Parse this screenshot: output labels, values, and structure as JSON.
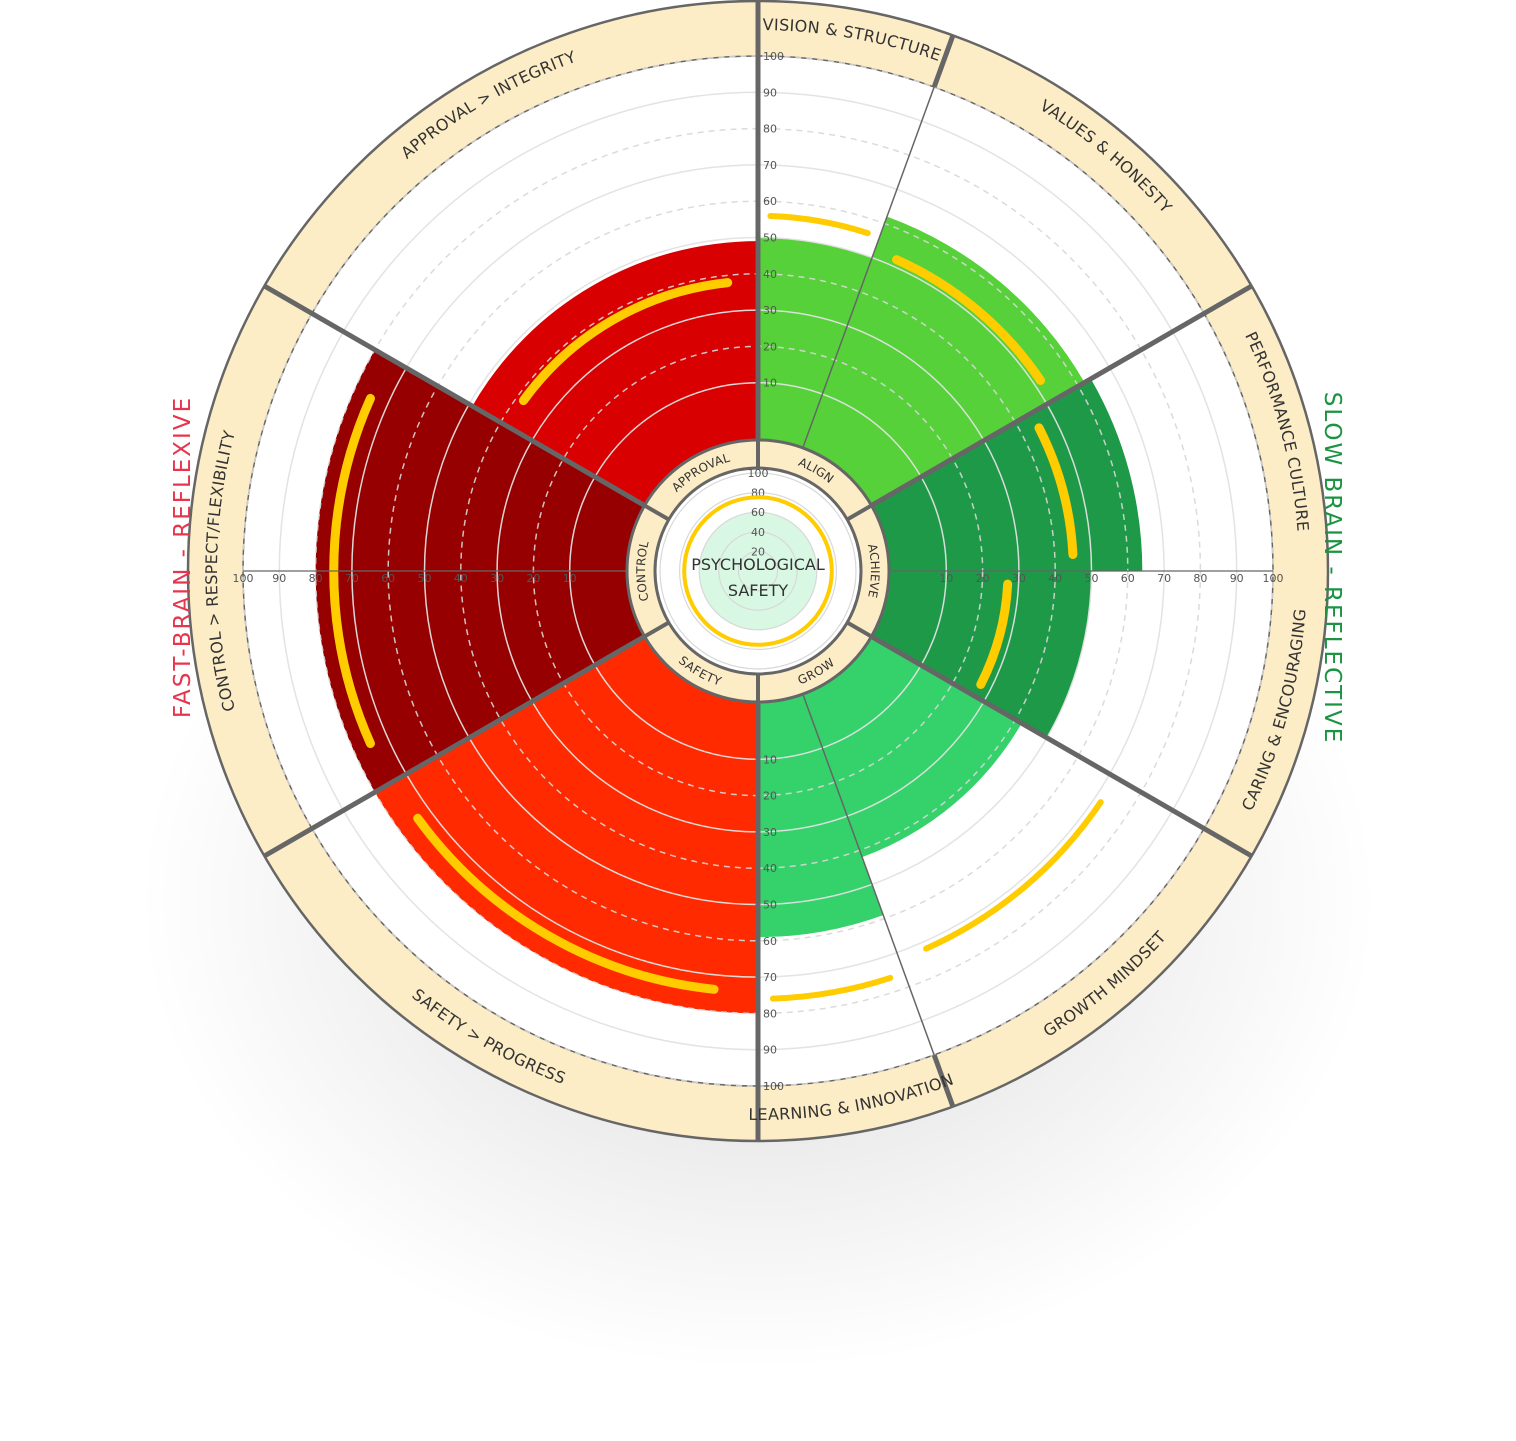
{
  "center": {
    "title_line1": "PSYCHOLOGICAL",
    "title_line2": "SAFETY"
  },
  "side_titles": {
    "left": "FAST-BRAIN - REFLEXIVE",
    "right": "SLOW BRAIN - REFLECTIVE"
  },
  "colors": {
    "ring": "#fdedc6",
    "ring_stroke": "#666666",
    "marker": "#ffcc00",
    "left_title": "#e8354d",
    "right_title": "#1a9440",
    "center_fill": "#d9f8e3"
  },
  "chart_data": {
    "type": "radial-bar",
    "title": "",
    "scale": [
      0,
      100
    ],
    "tick_values": [
      10,
      20,
      30,
      40,
      50,
      60,
      70,
      80,
      90,
      100
    ],
    "center_gauge": {
      "ticks": [
        20,
        40,
        60,
        80,
        100
      ],
      "value": 35,
      "marker": 60
    },
    "inner_labels": [
      "APPROVAL",
      "ALIGN",
      "ACHIEVE",
      "GROW",
      "SAFETY",
      "CONTROL"
    ],
    "segments": [
      {
        "label": "VISION & STRUCTURE",
        "value": 50,
        "marker": 56,
        "color": "#56d13a"
      },
      {
        "label": "VALUES & HONESTY",
        "value": 62,
        "marker": 52,
        "color": "#56d13a"
      },
      {
        "label": "PERFORMANCE CULTURE",
        "value": 64,
        "marker": 45,
        "color": "#1e9948"
      },
      {
        "label": "CARING & ENCOURAGING",
        "value": 50,
        "marker": 27,
        "color": "#1e9948"
      },
      {
        "label": "GROWTH MINDSET",
        "value": 42,
        "marker": 72,
        "color": "#35d16b"
      },
      {
        "label": "LEARNING & INNOVATION",
        "value": 59,
        "marker": 76,
        "color": "#35d16b"
      },
      {
        "label": "SAFETY > PROGRESS",
        "value": 80,
        "marker": 74,
        "color": "#ff2a00"
      },
      {
        "label": "CONTROL > RESPECT/FLEXIBILITY",
        "value": 80,
        "marker": 75,
        "color": "#960000"
      },
      {
        "label": "APPROVAL > INTEGRITY",
        "value": 49,
        "marker": 38,
        "color": "#d80000"
      }
    ]
  }
}
